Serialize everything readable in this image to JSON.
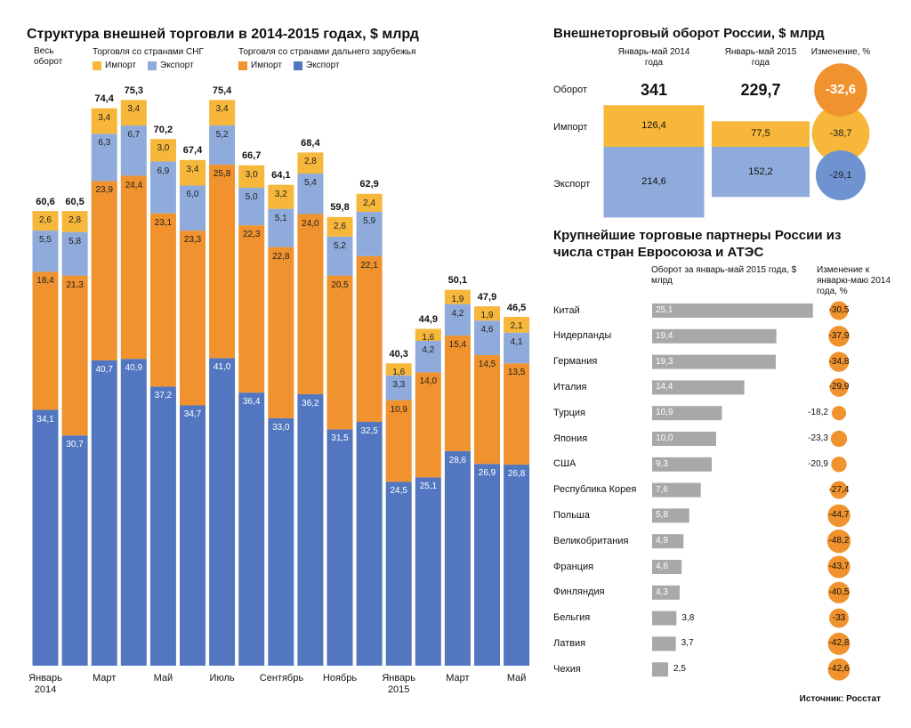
{
  "source": "Источник: Росстат",
  "chart_data": [
    {
      "type": "stacked-bar",
      "title": "Структура внешней торговли в 2014-2015 годах, $ млрд",
      "total_label": "Весь оборот",
      "categories": [
        "Январь 2014",
        null,
        "Март",
        null,
        "Май",
        null,
        "Июль",
        null,
        "Сентябрь",
        null,
        "Ноябрь",
        null,
        "Январь 2015",
        null,
        "Март",
        null,
        "Май"
      ],
      "totals": [
        60.6,
        60.5,
        74.4,
        75.3,
        70.2,
        67.4,
        75.4,
        66.7,
        64.1,
        68.4,
        59.8,
        62.9,
        40.3,
        44.9,
        50.1,
        47.9,
        46.5
      ],
      "total_labels": [
        "60,6",
        "60,5",
        "74,4",
        "75,3",
        "70,2",
        "67,4",
        "75,4",
        "66,7",
        "64,1",
        "68,4",
        "59,8",
        "62,9",
        "40,3",
        "44,9",
        "50,1",
        "47,9",
        "46,5"
      ],
      "groups": [
        {
          "name": "Торговля со странами СНГ",
          "series": [
            {
              "name": "Импорт",
              "color": "#f6b73a",
              "values": [
                2.6,
                2.8,
                3.4,
                3.4,
                3.0,
                3.4,
                3.4,
                3.0,
                3.2,
                2.8,
                2.6,
                2.4,
                1.6,
                1.6,
                1.9,
                1.9,
                2.1
              ],
              "value_labels": [
                "2,6",
                "2,8",
                "3,4",
                "3,4",
                "3,0",
                "3,4",
                "3,4",
                "3,0",
                "3,2",
                "2,8",
                "2,6",
                "2,4",
                "1,6",
                "1,6",
                "1,9",
                "1,9",
                "2,1"
              ]
            },
            {
              "name": "Экспорт",
              "color": "#8fabdc",
              "values": [
                5.5,
                5.8,
                6.3,
                6.7,
                6.9,
                6.0,
                5.2,
                5.0,
                5.1,
                5.4,
                5.2,
                5.9,
                3.3,
                4.2,
                4.2,
                4.6,
                4.1
              ],
              "value_labels": [
                "5,5",
                "5,8",
                "6,3",
                "6,7",
                "6,9",
                "6,0",
                "5,2",
                "5,0",
                "5,1",
                "5,4",
                "5,2",
                "5,9",
                "3,3",
                "4,2",
                "4,2",
                "4,6",
                "4,1"
              ]
            }
          ]
        },
        {
          "name": "Торговля со странами дальнего зарубежья",
          "series": [
            {
              "name": "Импорт",
              "color": "#f0922d",
              "values": [
                18.4,
                21.3,
                23.9,
                24.4,
                23.1,
                23.3,
                25.8,
                22.3,
                22.8,
                24.0,
                20.5,
                22.1,
                10.9,
                14.0,
                15.4,
                14.5,
                13.5
              ],
              "value_labels": [
                "18,4",
                "21,3",
                "23,9",
                "24,4",
                "23,1",
                "23,3",
                "25,8",
                "22,3",
                "22,8",
                "24,0",
                "20,5",
                "22,1",
                "10,9",
                "14,0",
                "15,4",
                "14,5",
                "13,5"
              ]
            },
            {
              "name": "Экспорт",
              "color": "#5277c0",
              "values": [
                34.1,
                30.7,
                40.7,
                40.9,
                37.2,
                34.7,
                41.0,
                36.4,
                33.0,
                36.2,
                31.5,
                32.5,
                24.5,
                25.1,
                28.6,
                26.9,
                26.8
              ],
              "value_labels": [
                "34,1",
                "30,7",
                "40,7",
                "40,9",
                "37,2",
                "34,7",
                "41,0",
                "36,4",
                "33,0",
                "36,2",
                "31,5",
                "32,5",
                "24,5",
                "25,1",
                "28,6",
                "26,9",
                "26,8"
              ]
            }
          ]
        }
      ]
    },
    {
      "type": "stacked-bar",
      "title": "Внешнеторговый оборот России, $ млрд",
      "categories": [
        "Январь-май 2014 года",
        "Январь-май 2015 года"
      ],
      "change_title": "Изменение, %",
      "total": {
        "name": "Оборот",
        "values": [
          341,
          229.7
        ],
        "value_labels": [
          "341",
          "229,7"
        ],
        "change": -32.6,
        "change_label": "-32,6",
        "change_color": "#f0922d"
      },
      "series": [
        {
          "name": "Импорт",
          "color": "#f6b73a",
          "values": [
            126.4,
            77.5
          ],
          "value_labels": [
            "126,4",
            "77,5"
          ],
          "change": -38.7,
          "change_label": "-38,7",
          "change_color": "#f6b73a"
        },
        {
          "name": "Экспорт",
          "color": "#8fabdc",
          "values": [
            214.6,
            152.2
          ],
          "value_labels": [
            "214,6",
            "152,2"
          ],
          "change": -29.1,
          "change_label": "-29,1",
          "change_color": "#6f92d0"
        }
      ]
    },
    {
      "type": "hbar",
      "title": "Крупнейшие торговые партнеры России из числа стран Евросоюза и АТЭС",
      "value_title": "Оборот за январь-май 2015 года, $ млрд",
      "change_title": "Изменение к январю-маю 2014 года, %",
      "color": "#a8a8a8",
      "change_color": "#f0922d",
      "categories": [
        "Китай",
        "Нидерланды",
        "Германия",
        "Италия",
        "Турция",
        "Япония",
        "США",
        "Республика Корея",
        "Польша",
        "Великобритания",
        "Франция",
        "Финляндия",
        "Бельгия",
        "Латвия",
        "Чехия"
      ],
      "values": [
        25.1,
        19.4,
        19.3,
        14.4,
        10.9,
        10.0,
        9.3,
        7.6,
        5.8,
        4.9,
        4.6,
        4.3,
        3.8,
        3.7,
        2.5
      ],
      "value_labels": [
        "25,1",
        "19,4",
        "19,3",
        "14,4",
        "10,9",
        "10,0",
        "9,3",
        "7,6",
        "5,8",
        "4,9",
        "4,6",
        "4,3",
        "3,8",
        "3,7",
        "2,5"
      ],
      "changes": [
        -30.5,
        -37.9,
        -34.8,
        -29.9,
        -18.2,
        -23.3,
        -20.9,
        -27.4,
        -44.7,
        -48.2,
        -43.7,
        -40.5,
        -33,
        -42.8,
        -42.6
      ],
      "change_labels": [
        "-30,5",
        "-37,9",
        "-34,8",
        "-29,9",
        "-18,2",
        "-23,3",
        "-20,9",
        "-27,4",
        "-44,7",
        "-48,2",
        "-43,7",
        "-40,5",
        "-33",
        "-42,8",
        "-42,6"
      ]
    }
  ]
}
